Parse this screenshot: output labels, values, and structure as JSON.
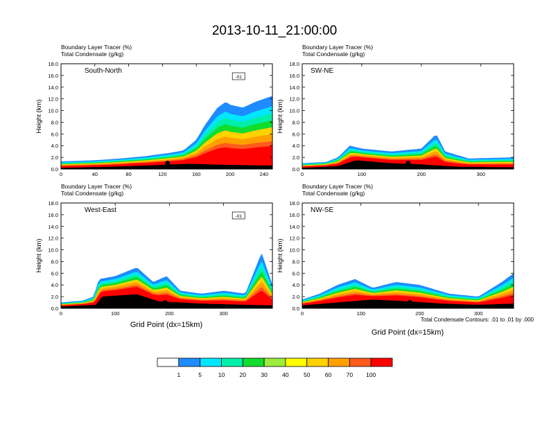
{
  "title": "2013-10-11_21:00:00",
  "common": {
    "subtitle_tracer": "Boundary Layer Tracer   (%)",
    "subtitle_condensate": "Total Condensate   (g/kg)",
    "ylabel": "Height (km)",
    "xlabel": "Grid Point (dx=15km)",
    "contour_note": "Total Condensate Contours: .01 to .01 by .000",
    "contour_label": "-01"
  },
  "colors": {
    "levels": [
      "#ffffff",
      "#1e8cff",
      "#00e6ff",
      "#00f0aa",
      "#12dc2e",
      "#9bec3c",
      "#ffff00",
      "#ffd200",
      "#ffa000",
      "#ff5a1e",
      "#ff0000"
    ],
    "ground": "#000000"
  },
  "colorbar": {
    "tick_labels": [
      "1",
      "5",
      "10",
      "20",
      "30",
      "40",
      "50",
      "60",
      "70",
      "100"
    ]
  },
  "chart_data": [
    {
      "type": "heatmap",
      "panel_label": "South-North",
      "xlim": [
        0,
        250
      ],
      "x_ticks": [
        "0",
        "40",
        "80",
        "120",
        "160",
        "200",
        "240"
      ],
      "x_tick_values": [
        0,
        40,
        80,
        120,
        160,
        200,
        240
      ],
      "ylim": [
        0,
        18
      ],
      "y_ticks": [
        "0.0",
        "2.0",
        "4.0",
        "6.0",
        "8.0",
        "10.0",
        "12.0",
        "14.0",
        "16.0",
        "18.0"
      ],
      "tracer_top_km": [
        [
          0,
          1.3
        ],
        [
          40,
          1.5
        ],
        [
          70,
          1.8
        ],
        [
          100,
          2.2
        ],
        [
          130,
          2.8
        ],
        [
          145,
          3.2
        ],
        [
          160,
          5.0
        ],
        [
          170,
          7.5
        ],
        [
          185,
          10.5
        ],
        [
          195,
          11.5
        ],
        [
          200,
          11.0
        ],
        [
          215,
          10.5
        ],
        [
          230,
          11.5
        ],
        [
          250,
          12.5
        ]
      ],
      "terrain_top_km": [
        [
          0,
          0.2
        ],
        [
          60,
          0.4
        ],
        [
          100,
          0.6
        ],
        [
          150,
          0.9
        ],
        [
          200,
          0.7
        ],
        [
          250,
          0.6
        ]
      ],
      "site_marker": [
        126,
        1.0
      ],
      "has_contour_label": true
    },
    {
      "type": "heatmap",
      "panel_label": "SW-NE",
      "xlim": [
        0,
        355
      ],
      "x_ticks": [
        "0",
        "100",
        "200",
        "300"
      ],
      "x_tick_values": [
        0,
        100,
        200,
        300
      ],
      "ylim": [
        0,
        18
      ],
      "y_ticks": [
        "0.0",
        "2.0",
        "4.0",
        "6.0",
        "8.0",
        "10.0",
        "12.0",
        "14.0",
        "16.0",
        "18.0"
      ],
      "tracer_top_km": [
        [
          0,
          1.0
        ],
        [
          40,
          1.2
        ],
        [
          60,
          2.0
        ],
        [
          80,
          4.0
        ],
        [
          100,
          3.5
        ],
        [
          150,
          3.0
        ],
        [
          200,
          3.5
        ],
        [
          225,
          6.0
        ],
        [
          240,
          3.0
        ],
        [
          280,
          1.8
        ],
        [
          355,
          2.0
        ]
      ],
      "terrain_top_km": [
        [
          0,
          0.2
        ],
        [
          60,
          0.5
        ],
        [
          90,
          1.5
        ],
        [
          150,
          1.0
        ],
        [
          200,
          0.8
        ],
        [
          260,
          0.4
        ],
        [
          355,
          0.3
        ]
      ],
      "site_marker": [
        178,
        1.0
      ],
      "has_contour_label": false
    },
    {
      "type": "heatmap",
      "panel_label": "West-East",
      "xlim": [
        0,
        390
      ],
      "x_ticks": [
        "0",
        "100",
        "200",
        "300"
      ],
      "x_tick_values": [
        0,
        100,
        200,
        300
      ],
      "ylim": [
        0,
        18
      ],
      "y_ticks": [
        "0.0",
        "2.0",
        "4.0",
        "6.0",
        "8.0",
        "10.0",
        "12.0",
        "14.0",
        "16.0",
        "18.0"
      ],
      "tracer_top_km": [
        [
          0,
          1.0
        ],
        [
          40,
          1.3
        ],
        [
          60,
          2.0
        ],
        [
          70,
          5.0
        ],
        [
          100,
          5.5
        ],
        [
          140,
          7.0
        ],
        [
          170,
          4.5
        ],
        [
          195,
          5.5
        ],
        [
          220,
          3.0
        ],
        [
          260,
          2.5
        ],
        [
          300,
          3.0
        ],
        [
          340,
          2.5
        ],
        [
          370,
          9.5
        ],
        [
          390,
          4.0
        ]
      ],
      "terrain_top_km": [
        [
          0,
          0.3
        ],
        [
          65,
          0.6
        ],
        [
          75,
          2.0
        ],
        [
          140,
          2.4
        ],
        [
          180,
          1.2
        ],
        [
          260,
          0.8
        ],
        [
          340,
          0.6
        ],
        [
          390,
          0.5
        ]
      ],
      "site_marker": [
        192,
        1.0
      ],
      "has_contour_label": true
    },
    {
      "type": "heatmap",
      "panel_label": "NW-SE",
      "xlim": [
        0,
        360
      ],
      "x_ticks": [
        "0",
        "100",
        "200",
        "300"
      ],
      "x_tick_values": [
        0,
        100,
        200,
        300
      ],
      "ylim": [
        0,
        18
      ],
      "y_ticks": [
        "0.0",
        "2.0",
        "4.0",
        "6.0",
        "8.0",
        "10.0",
        "12.0",
        "14.0",
        "16.0",
        "18.0"
      ],
      "tracer_top_km": [
        [
          0,
          1.5
        ],
        [
          30,
          2.5
        ],
        [
          60,
          4.0
        ],
        [
          90,
          5.0
        ],
        [
          120,
          3.5
        ],
        [
          160,
          4.5
        ],
        [
          200,
          4.0
        ],
        [
          250,
          2.5
        ],
        [
          300,
          2.0
        ],
        [
          340,
          4.5
        ],
        [
          360,
          6.0
        ]
      ],
      "terrain_top_km": [
        [
          0,
          0.5
        ],
        [
          60,
          1.0
        ],
        [
          120,
          1.5
        ],
        [
          180,
          1.2
        ],
        [
          240,
          0.8
        ],
        [
          300,
          0.6
        ],
        [
          360,
          0.8
        ]
      ],
      "site_marker": [
        183,
        1.0
      ],
      "has_contour_label": false
    }
  ]
}
